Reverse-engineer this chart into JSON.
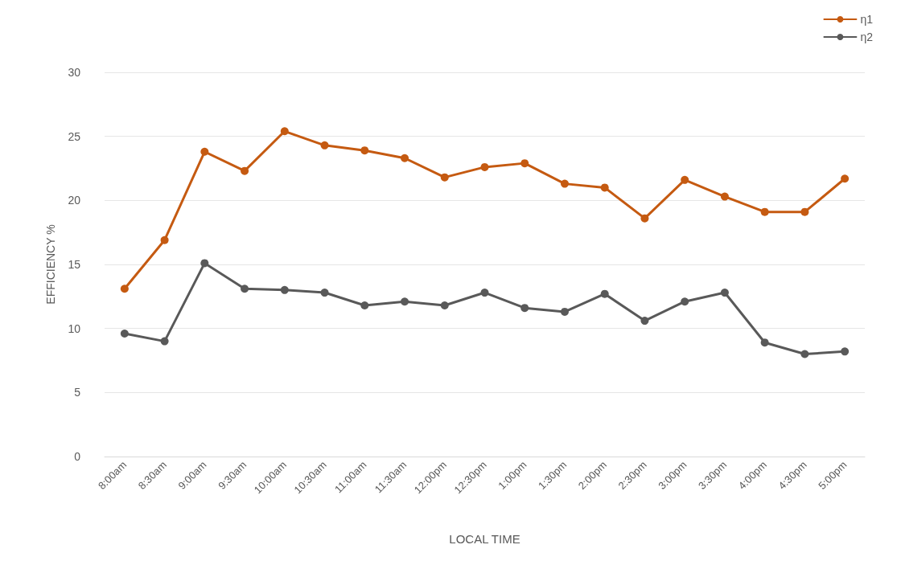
{
  "chart_data": {
    "type": "line",
    "xlabel": "LOCAL TIME",
    "ylabel": "EFFICIENCY %",
    "categories": [
      "8:00am",
      "8:30am",
      "9:00am",
      "9:30am",
      "10:00am",
      "10:30am",
      "11:00am",
      "11:30am",
      "12:00pm",
      "12:30pm",
      "1:00pm",
      "1:30pm",
      "2:00pm",
      "2:30pm",
      "3:00pm",
      "3:30pm",
      "4:00pm",
      "4:30pm",
      "5:00pm"
    ],
    "series": [
      {
        "name": "η1",
        "color": "#c55a11",
        "values": [
          13.1,
          16.9,
          23.8,
          22.3,
          25.4,
          24.3,
          23.9,
          23.3,
          21.8,
          22.6,
          22.9,
          21.3,
          21.0,
          18.6,
          21.6,
          20.3,
          19.1,
          19.1,
          21.7
        ]
      },
      {
        "name": "η2",
        "color": "#595959",
        "values": [
          9.6,
          9.0,
          15.1,
          13.1,
          13.0,
          12.8,
          11.8,
          12.1,
          11.8,
          12.8,
          11.6,
          11.3,
          12.7,
          10.6,
          12.1,
          12.8,
          8.9,
          8.0,
          8.2
        ]
      }
    ],
    "ylim": [
      0,
      30
    ],
    "yticks": [
      0,
      5,
      10,
      15,
      20,
      25,
      30
    ],
    "grid": "y",
    "legend": "top right",
    "marker": "circle",
    "line_style": "solid"
  }
}
